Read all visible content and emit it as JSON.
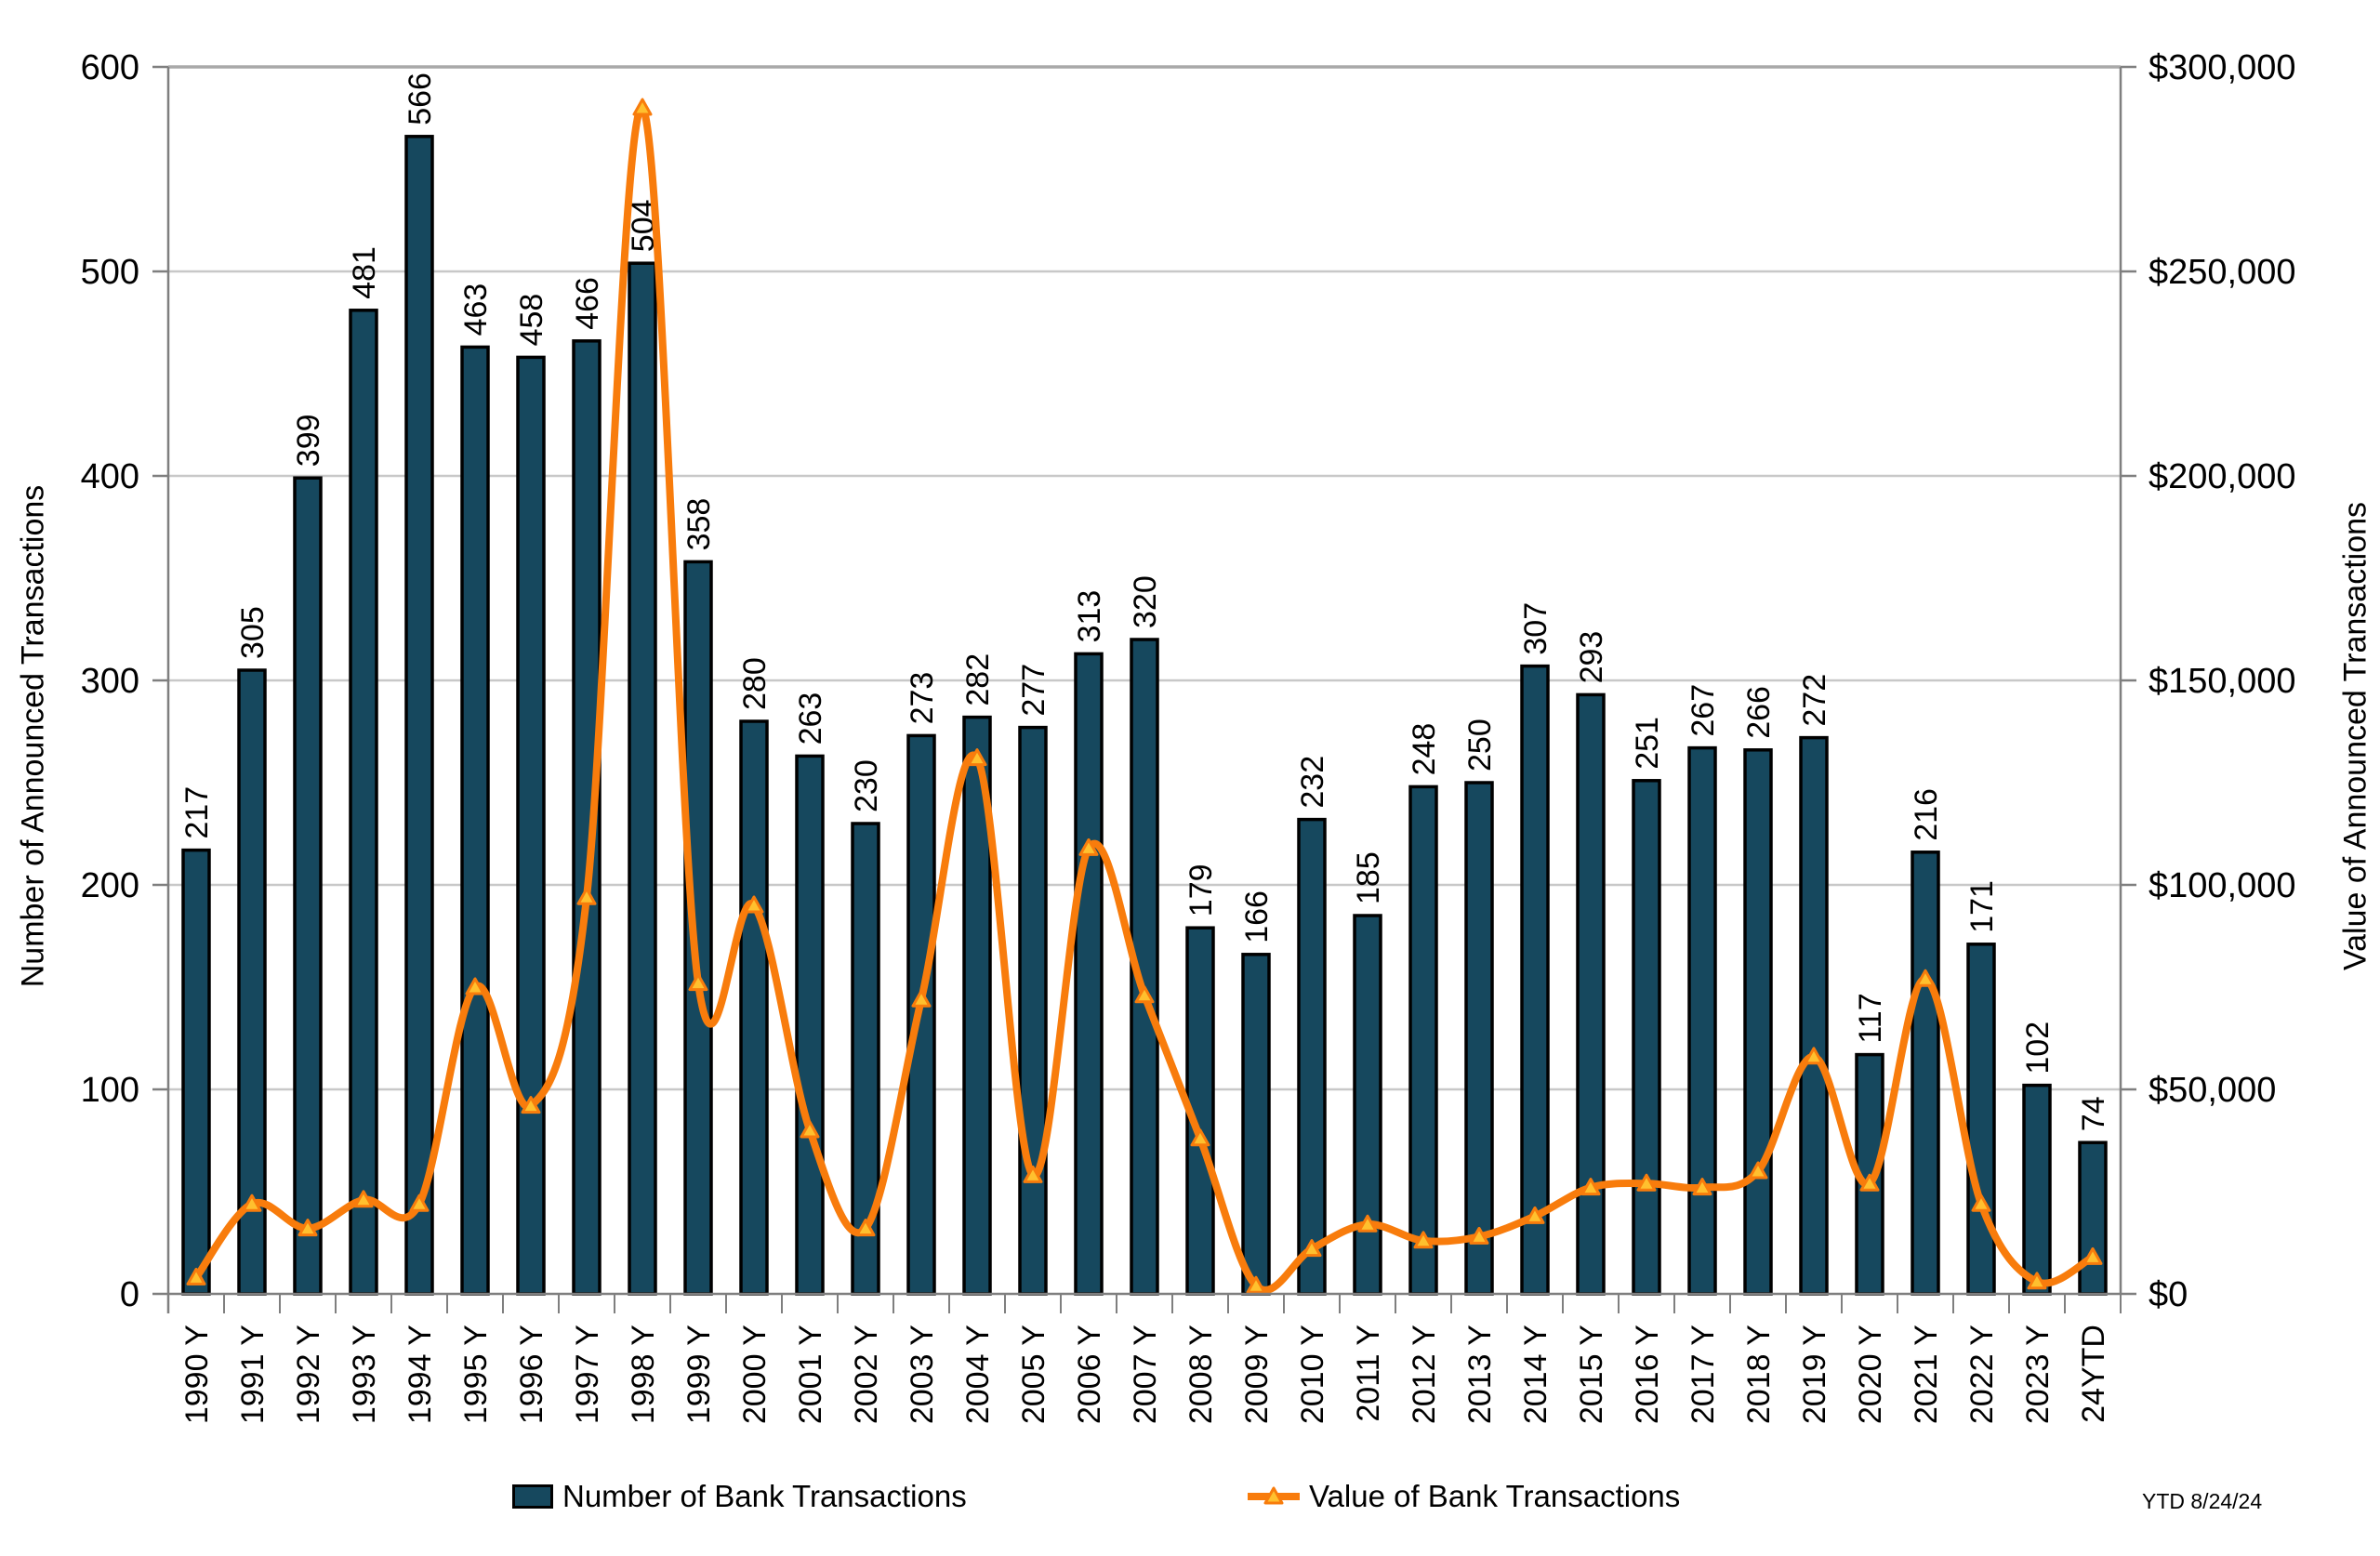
{
  "chart_data": {
    "type": "combo-bar-line",
    "categories": [
      "1990 Y",
      "1991 Y",
      "1992 Y",
      "1993 Y",
      "1994 Y",
      "1995 Y",
      "1996 Y",
      "1997 Y",
      "1998 Y",
      "1999 Y",
      "2000 Y",
      "2001 Y",
      "2002 Y",
      "2003 Y",
      "2004 Y",
      "2005 Y",
      "2006 Y",
      "2007 Y",
      "2008 Y",
      "2009 Y",
      "2010 Y",
      "2011 Y",
      "2012 Y",
      "2013 Y",
      "2014 Y",
      "2015 Y",
      "2016 Y",
      "2017 Y",
      "2018 Y",
      "2019 Y",
      "2020 Y",
      "2021 Y",
      "2022 Y",
      "2023 Y",
      "24YTD"
    ],
    "series": [
      {
        "name": "Number of Bank Transactions",
        "type": "bar",
        "axis": "left",
        "values": [
          217,
          305,
          399,
          481,
          566,
          463,
          458,
          466,
          504,
          358,
          280,
          263,
          230,
          273,
          282,
          277,
          313,
          320,
          179,
          166,
          232,
          185,
          248,
          250,
          307,
          293,
          251,
          267,
          266,
          272,
          117,
          216,
          171,
          102,
          74
        ]
      },
      {
        "name": "Value of Bank Transactions",
        "type": "line",
        "axis": "right",
        "values": [
          4000,
          22000,
          16000,
          23000,
          22000,
          75000,
          46000,
          97000,
          290000,
          76000,
          95000,
          40000,
          16000,
          72000,
          131000,
          29000,
          109000,
          73000,
          38000,
          2000,
          11000,
          17000,
          13000,
          14000,
          19000,
          26000,
          27000,
          26000,
          30000,
          58000,
          27000,
          77000,
          22000,
          3000,
          9000
        ]
      }
    ],
    "left_axis": {
      "title": "Number of Announced Transactions",
      "min": 0,
      "max": 600,
      "step": 100,
      "tick_labels": [
        "0",
        "100",
        "200",
        "300",
        "400",
        "500",
        "600"
      ]
    },
    "right_axis": {
      "title": "Value of Announced Transactions",
      "min": 0,
      "max": 300000,
      "step": 50000,
      "tick_labels": [
        "$0",
        "$50,000",
        "$100,000",
        "$150,000",
        "$200,000",
        "$250,000",
        "$300,000"
      ]
    },
    "grid": true,
    "legend_position": "bottom",
    "legend": [
      {
        "label": "Number of Bank Transactions",
        "swatch": "bar"
      },
      {
        "label": "Value of Bank Transactions",
        "swatch": "line"
      }
    ],
    "footnote": "YTD 8/24/24"
  },
  "colors": {
    "bar_fill": "#16485E",
    "bar_stroke": "#000000",
    "line": "#F87C0C",
    "marker_fill": "#FFC02E",
    "grid": "#C8C8C8",
    "grid_top": "#A9A9A9",
    "axis": "#7F7F7F",
    "text": "#000000",
    "background": "#FFFFFF"
  }
}
